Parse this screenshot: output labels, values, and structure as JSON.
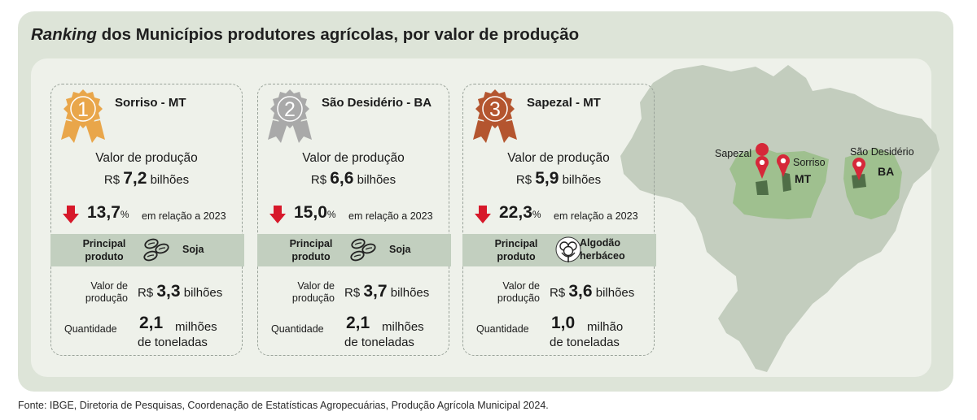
{
  "title": {
    "italic": "Ranking",
    "rest": " dos Municípios produtores agrícolas, por valor de produção"
  },
  "source": "Fonte: IBGE, Diretoria de Pesquisas, Coordenação de Estatísticas Agropecuárias, Produção Agrícola Municipal 2024.",
  "common": {
    "vp_label": "Valor de produção",
    "currency": "R$",
    "rel_text": "em relação a 2023",
    "pct_sign": "%",
    "principal_label": "Principal produto",
    "pv_label": "Valor de produção",
    "q_label": "Quantidade"
  },
  "colors": {
    "gold": "#e9a64a",
    "silver": "#a9a9a9",
    "bronze": "#b4552f",
    "down_arrow": "#d7182a",
    "band": "#c2cfbf",
    "map_light": "#c3cdbe",
    "map_highlight": "#9fc08f",
    "pin": "#d62839"
  },
  "cards": [
    {
      "rank": "1",
      "medal": "gold-medal",
      "city": "Sorriso - MT",
      "vp_value": "7,2",
      "vp_unit": "bilhões",
      "change": "13,7",
      "product_icon": "soybean-icon",
      "product": "Soja",
      "pv_value": "3,3",
      "pv_unit": "bilhões",
      "q_value": "2,1",
      "q_unit1": "milhões",
      "q_unit2": "de toneladas"
    },
    {
      "rank": "2",
      "medal": "silver-medal",
      "city": "São Desidério - BA",
      "vp_value": "6,6",
      "vp_unit": "bilhões",
      "change": "15,0",
      "product_icon": "soybean-icon",
      "product": "Soja",
      "pv_value": "3,7",
      "pv_unit": "bilhões",
      "q_value": "2,1",
      "q_unit1": "milhões",
      "q_unit2": "de toneladas"
    },
    {
      "rank": "3",
      "medal": "bronze-medal",
      "city": "Sapezal - MT",
      "vp_value": "5,9",
      "vp_unit": "bilhões",
      "change": "22,3",
      "product_icon": "cotton-icon",
      "product": "Algodão herbáceo",
      "pv_value": "3,6",
      "pv_unit": "bilhões",
      "q_value": "1,0",
      "q_unit1": "milhão",
      "q_unit2": "de toneladas"
    }
  ],
  "map": {
    "labels": {
      "sapezal": "Sapezal",
      "sorriso": "Sorriso",
      "mt": "MT",
      "sao_desiderio": "São Desidério",
      "ba": "BA"
    }
  }
}
